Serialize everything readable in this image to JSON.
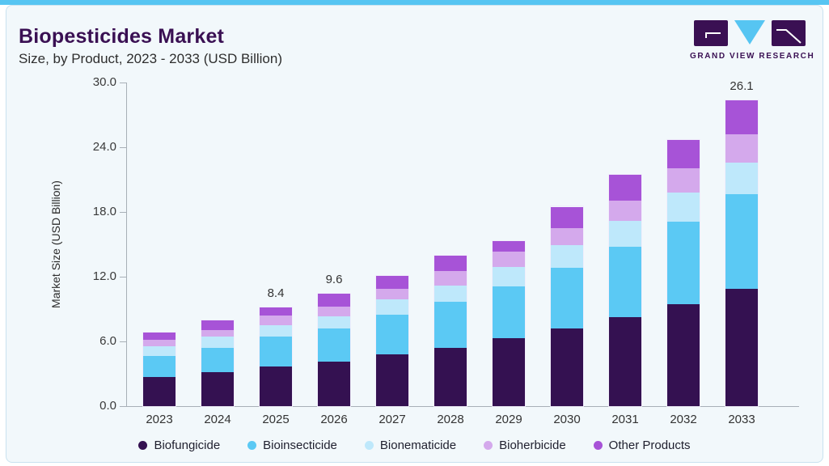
{
  "header": {
    "title": "Biopesticides Market",
    "subtitle": "Size, by Product, 2023 - 2033 (USD Billion)",
    "brand_name": "GRAND VIEW RESEARCH"
  },
  "colors": {
    "accent_strip": "#56c5f2",
    "card_background": "#f2f8fb",
    "title_purple": "#3a1053",
    "axis_gray": "#a8b0b7",
    "logo_dark": "#3a1053",
    "logo_cyan": "#56c5f2"
  },
  "chart_data": {
    "type": "bar",
    "stacked": true,
    "title": "Biopesticides Market Size, by Product, 2023 - 2033 (USD Billion)",
    "xlabel": "",
    "ylabel": "Market Size (USD Billion)",
    "ylim": [
      0,
      30
    ],
    "ytick_labels": [
      "0.0",
      "6.0",
      "12.0",
      "18.0",
      "24.0",
      "30.0"
    ],
    "grid": false,
    "legend_position": "bottom",
    "categories": [
      "2023",
      "2024",
      "2025",
      "2026",
      "2027",
      "2028",
      "2029",
      "2030",
      "2031",
      "2032",
      "2033"
    ],
    "series": [
      {
        "name": "Biofungicide",
        "color": "#341151",
        "values": [
          2.5,
          2.9,
          3.4,
          3.8,
          4.4,
          5.0,
          5.8,
          6.6,
          7.6,
          8.7,
          10.0
        ]
      },
      {
        "name": "Bioinsecticide",
        "color": "#5bc9f4",
        "values": [
          1.8,
          2.1,
          2.5,
          2.8,
          3.4,
          3.9,
          4.4,
          5.2,
          6.0,
          7.0,
          8.1
        ]
      },
      {
        "name": "Bionematicide",
        "color": "#bee8fb",
        "values": [
          0.8,
          0.9,
          1.0,
          1.1,
          1.3,
          1.4,
          1.7,
          1.9,
          2.2,
          2.5,
          2.7
        ]
      },
      {
        "name": "Bioherbicide",
        "color": "#d4a9ec",
        "values": [
          0.6,
          0.6,
          0.8,
          0.8,
          0.9,
          1.2,
          1.3,
          1.5,
          1.7,
          2.1,
          2.4
        ]
      },
      {
        "name": "Other Products",
        "color": "#a753d7",
        "values": [
          0.6,
          0.8,
          0.7,
          1.1,
          1.1,
          1.3,
          0.9,
          1.8,
          2.2,
          2.4,
          2.9
        ]
      }
    ],
    "totals": [
      6.3,
      7.3,
      8.4,
      9.6,
      11.1,
      12.8,
      14.1,
      17.0,
      19.7,
      22.7,
      26.1
    ],
    "annotations": [
      {
        "category": "2025",
        "label": "8.4"
      },
      {
        "category": "2026",
        "label": "9.6"
      },
      {
        "category": "2033",
        "label": "26.1"
      }
    ]
  }
}
